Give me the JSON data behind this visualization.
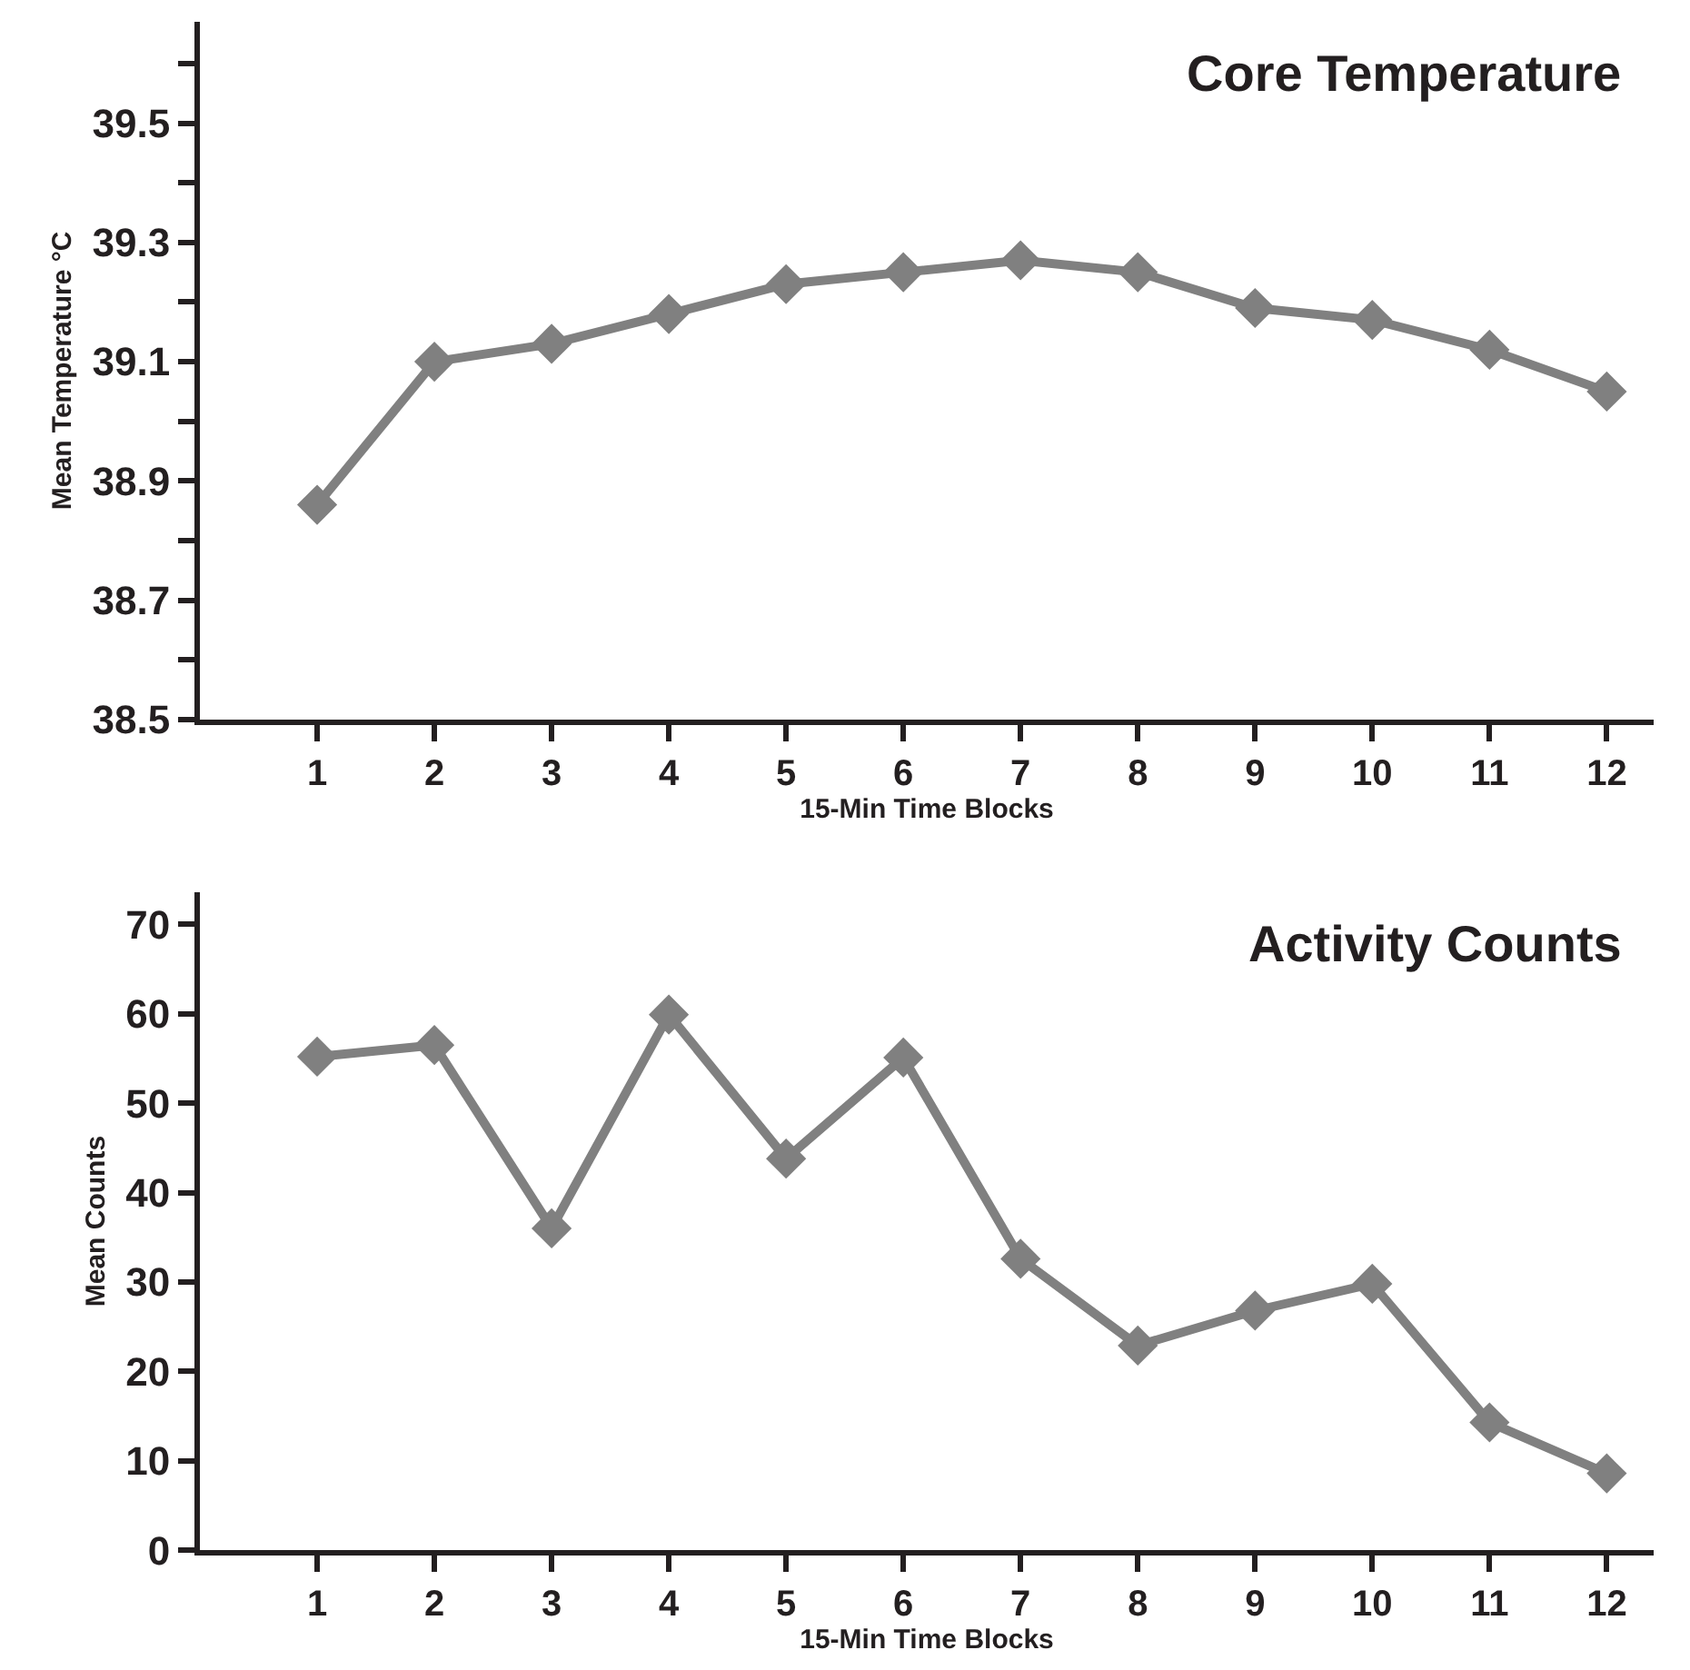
{
  "chart_data": [
    {
      "type": "line",
      "title": "Core Temperature",
      "xlabel": "15-Min Time Blocks",
      "ylabel": "Mean Temperature °C",
      "x": [
        1,
        2,
        3,
        4,
        5,
        6,
        7,
        8,
        9,
        10,
        11,
        12
      ],
      "series": [
        {
          "color": "#808080",
          "values": [
            38.86,
            39.1,
            39.13,
            39.18,
            39.23,
            39.25,
            39.27,
            39.25,
            39.19,
            39.17,
            39.12,
            39.05
          ]
        }
      ],
      "xlim": [
        0,
        12.4
      ],
      "xticks": [
        1,
        2,
        3,
        4,
        5,
        6,
        7,
        8,
        9,
        10,
        11,
        12
      ],
      "ylim": [
        38.5,
        39.67
      ],
      "yticks": [
        38.5,
        {
          "value": 38.6,
          "label": null
        },
        38.7,
        {
          "value": 38.8,
          "label": null
        },
        38.9,
        {
          "value": 39.0,
          "label": null
        },
        39.1,
        {
          "value": 39.2,
          "label": null
        },
        39.3,
        {
          "value": 39.4,
          "label": null
        },
        39.5,
        {
          "value": 39.6,
          "label": null
        }
      ],
      "marker": "diamond",
      "line_style": "solid"
    },
    {
      "type": "line",
      "title": "Activity Counts",
      "xlabel": "15-Min Time Blocks",
      "ylabel": "Mean Counts",
      "x": [
        1,
        2,
        3,
        4,
        5,
        6,
        7,
        8,
        9,
        10,
        11,
        12
      ],
      "series": [
        {
          "color": "#808080",
          "values": [
            55.2,
            56.5,
            36.0,
            59.9,
            43.8,
            55.1,
            32.6,
            22.9,
            26.8,
            29.8,
            14.3,
            8.6
          ]
        }
      ],
      "xlim": [
        0,
        12.4
      ],
      "xticks": [
        1,
        2,
        3,
        4,
        5,
        6,
        7,
        8,
        9,
        10,
        11,
        12
      ],
      "ylim": [
        0,
        73.6
      ],
      "yticks": [
        0,
        10,
        20,
        30,
        40,
        50,
        60,
        70
      ],
      "marker": "diamond",
      "line_style": "solid"
    }
  ]
}
